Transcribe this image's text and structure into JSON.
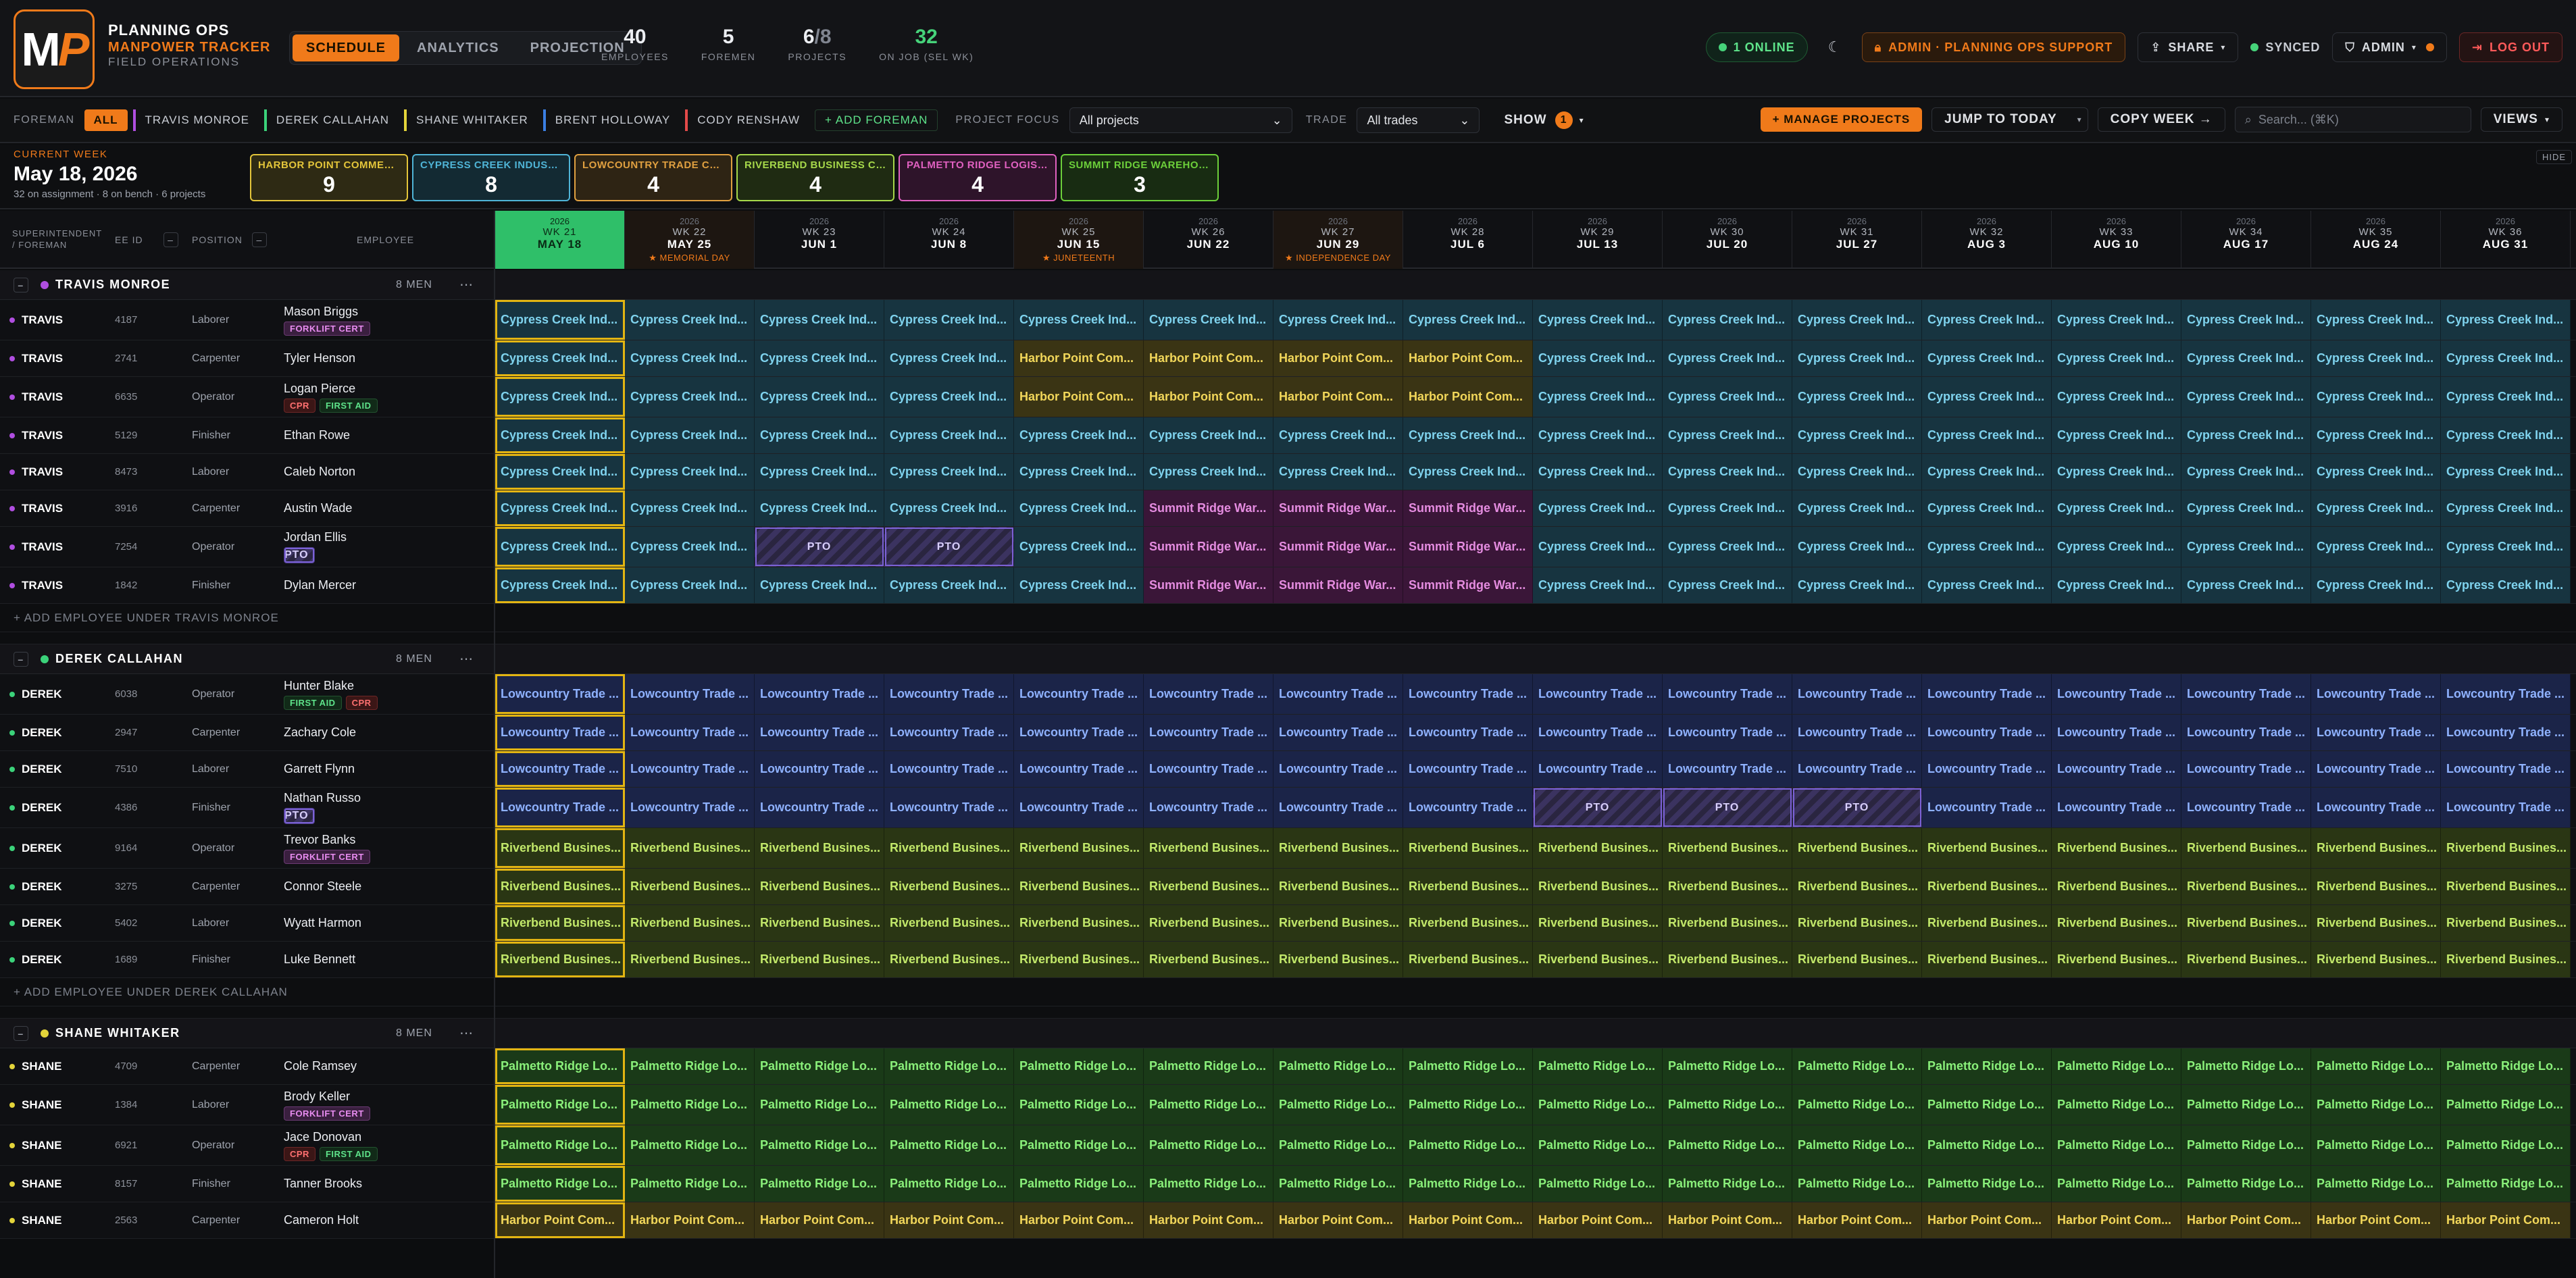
{
  "header": {
    "brand_line1": "PLANNING OPS",
    "brand_line2": "MANPOWER TRACKER",
    "brand_line3": "FIELD OPERATIONS",
    "logo_m": "M",
    "logo_p": "P",
    "tabs": [
      "SCHEDULE",
      "ANALYTICS",
      "PROJECTION"
    ],
    "stats": [
      {
        "value": "40",
        "label": "EMPLOYEES"
      },
      {
        "value": "5",
        "label": "FOREMEN"
      },
      {
        "value": "6",
        "value_sub": "/8",
        "label": "PROJECTS"
      },
      {
        "value": "32",
        "label": "ON JOB (SEL WK)"
      }
    ],
    "online": "1 ONLINE",
    "theme_icon": "moon-icon",
    "admin_support": "ADMIN · PLANNING OPS SUPPORT",
    "share": "SHARE",
    "synced": "SYNCED",
    "admin": "ADMIN",
    "logout": "LOG OUT"
  },
  "toolbar": {
    "foreman_label": "FOREMAN",
    "foremen": [
      {
        "label": "ALL",
        "color": "#f07a1a"
      },
      {
        "label": "TRAVIS MONROE",
        "color": "#b04ee0"
      },
      {
        "label": "DEREK CALLAHAN",
        "color": "#3bd27a"
      },
      {
        "label": "SHANE WHITAKER",
        "color": "#e3d43a"
      },
      {
        "label": "BRENT HOLLOWAY",
        "color": "#3b7fe3"
      },
      {
        "label": "CODY RENSHAW",
        "color": "#e34a4a"
      }
    ],
    "add_foreman": "+ ADD FOREMAN",
    "project_focus_label": "PROJECT FOCUS",
    "project_focus_value": "All projects",
    "trade_label": "TRADE",
    "trade_value": "All trades",
    "show_label": "SHOW",
    "show_count": "1",
    "manage_projects": "+ MANAGE PROJECTS",
    "jump_today": "JUMP TO TODAY",
    "copy_week": "COPY WEEK →",
    "search_placeholder": "Search... (⌘K)",
    "views": "VIEWS"
  },
  "summary": {
    "current_week_label": "CURRENT WEEK",
    "current_week_date": "May 18, 2026",
    "current_week_detail": "32 on assignment · 8 on bench · 6 projects",
    "hide": "HIDE",
    "projects": [
      {
        "name": "HARBOR POINT COMMER...",
        "count": "9",
        "color": "#e3c53a",
        "bg": "#2e2a14"
      },
      {
        "name": "CYPRESS CREEK INDUST...",
        "count": "8",
        "color": "#4fb4d6",
        "bg": "#132a33"
      },
      {
        "name": "LOWCOUNTRY TRADE CE...",
        "count": "4",
        "color": "#e0a040",
        "bg": "#2e2414"
      },
      {
        "name": "RIVERBEND BUSINESS CA...",
        "count": "4",
        "color": "#a6d84a",
        "bg": "#1f2b12"
      },
      {
        "name": "PALMETTO RIDGE LOGIST...",
        "count": "4",
        "color": "#e060c0",
        "bg": "#2e142a"
      },
      {
        "name": "SUMMIT RIDGE WAREHOU...",
        "count": "3",
        "color": "#6ccf3a",
        "bg": "#182c12"
      }
    ]
  },
  "columns": {
    "supt": "SUPERINTENDENT / FOREMAN",
    "eeid": "EE ID",
    "position": "POSITION",
    "employee": "EMPLOYEE"
  },
  "weeks": [
    {
      "year": "2026",
      "wk": "WK 21",
      "date": "MAY 18",
      "holiday": ""
    },
    {
      "year": "2026",
      "wk": "WK 22",
      "date": "MAY 25",
      "holiday": "★ MEMORIAL DAY"
    },
    {
      "year": "2026",
      "wk": "WK 23",
      "date": "JUN 1",
      "holiday": ""
    },
    {
      "year": "2026",
      "wk": "WK 24",
      "date": "JUN 8",
      "holiday": ""
    },
    {
      "year": "2026",
      "wk": "WK 25",
      "date": "JUN 15",
      "holiday": "★ JUNETEENTH"
    },
    {
      "year": "2026",
      "wk": "WK 26",
      "date": "JUN 22",
      "holiday": ""
    },
    {
      "year": "2026",
      "wk": "WK 27",
      "date": "JUN 29",
      "holiday": "★ INDEPENDENCE DAY"
    },
    {
      "year": "2026",
      "wk": "WK 28",
      "date": "JUL 6",
      "holiday": ""
    },
    {
      "year": "2026",
      "wk": "WK 29",
      "date": "JUL 13",
      "holiday": ""
    },
    {
      "year": "2026",
      "wk": "WK 30",
      "date": "JUL 20",
      "holiday": ""
    },
    {
      "year": "2026",
      "wk": "WK 31",
      "date": "JUL 27",
      "holiday": ""
    },
    {
      "year": "2026",
      "wk": "WK 32",
      "date": "AUG 3",
      "holiday": ""
    },
    {
      "year": "2026",
      "wk": "WK 33",
      "date": "AUG 10",
      "holiday": ""
    },
    {
      "year": "2026",
      "wk": "WK 34",
      "date": "AUG 17",
      "holiday": ""
    },
    {
      "year": "2026",
      "wk": "WK 35",
      "date": "AUG 24",
      "holiday": ""
    },
    {
      "year": "2026",
      "wk": "WK 36",
      "date": "AUG 31",
      "holiday": ""
    }
  ],
  "project_styles": {
    "C": {
      "label": "Cypress Creek Ind...",
      "fg": "#7fd3ee",
      "bg": "#173440"
    },
    "H": {
      "label": "Harbor Point Com...",
      "fg": "#f2d75a",
      "bg": "#3a3414"
    },
    "S": {
      "label": "Summit Ridge War...",
      "fg": "#e58ce0",
      "bg": "#3a1638"
    },
    "L": {
      "label": "Lowcountry Trade ...",
      "fg": "#8fb2ff",
      "bg": "#1b2448"
    },
    "R": {
      "label": "Riverbend Busines...",
      "fg": "#c2e86a",
      "bg": "#2a3614"
    },
    "P": {
      "label": "Palmetto Ridge Lo...",
      "fg": "#8af07a",
      "bg": "#1a3a18"
    },
    "T": {
      "label": "PTO",
      "fg": "#d8cffb",
      "bg": "#2a2540"
    }
  },
  "groups": [
    {
      "name": "TRAVIS MONROE",
      "color": "#b04ee0",
      "men": "8 MEN",
      "short": "TRAVIS",
      "add_label": "+ ADD EMPLOYEE UNDER TRAVIS MONROE",
      "employees": [
        {
          "id": "4187",
          "position": "Laborer",
          "name": "Mason Briggs",
          "certs": [
            "FORKLIFT CERT"
          ],
          "weeks": "CCCCCCCCCCCCCCCC"
        },
        {
          "id": "2741",
          "position": "Carpenter",
          "name": "Tyler Henson",
          "certs": [],
          "weeks": "CCCCHHHHCCCCCCCC"
        },
        {
          "id": "6635",
          "position": "Operator",
          "name": "Logan Pierce",
          "certs": [
            "CPR",
            "FIRST AID"
          ],
          "weeks": "CCCCHHHHCCCCCCCC"
        },
        {
          "id": "5129",
          "position": "Finisher",
          "name": "Ethan Rowe",
          "certs": [],
          "weeks": "CCCCCCCCCCCCCCCC"
        },
        {
          "id": "8473",
          "position": "Laborer",
          "name": "Caleb Norton",
          "certs": [],
          "weeks": "CCCCCCCCCCCCCCCC"
        },
        {
          "id": "3916",
          "position": "Carpenter",
          "name": "Austin Wade",
          "certs": [],
          "weeks": "CCCCCSSSCCCCCCCC"
        },
        {
          "id": "7254",
          "position": "Operator",
          "name": "Jordan Ellis",
          "certs": [
            "PTO"
          ],
          "weeks": "CCTTCSSSCCCCCCCC"
        },
        {
          "id": "1842",
          "position": "Finisher",
          "name": "Dylan Mercer",
          "certs": [],
          "weeks": "CCCCCSSSCCCCCCCC"
        }
      ]
    },
    {
      "name": "DEREK CALLAHAN",
      "color": "#3bd27a",
      "men": "8 MEN",
      "short": "DEREK",
      "add_label": "+ ADD EMPLOYEE UNDER DEREK CALLAHAN",
      "employees": [
        {
          "id": "6038",
          "position": "Operator",
          "name": "Hunter Blake",
          "certs": [
            "FIRST AID",
            "CPR"
          ],
          "weeks": "LLLLLLLLLLLLLLLL"
        },
        {
          "id": "2947",
          "position": "Carpenter",
          "name": "Zachary Cole",
          "certs": [],
          "weeks": "LLLLLLLLLLLLLLLL"
        },
        {
          "id": "7510",
          "position": "Laborer",
          "name": "Garrett Flynn",
          "certs": [],
          "weeks": "LLLLLLLLLLLLLLLL"
        },
        {
          "id": "4386",
          "position": "Finisher",
          "name": "Nathan Russo",
          "certs": [
            "PTO"
          ],
          "weeks": "LLLLLLLLTTTLLLLL"
        },
        {
          "id": "9164",
          "position": "Operator",
          "name": "Trevor Banks",
          "certs": [
            "FORKLIFT CERT"
          ],
          "weeks": "RRRRRRRRRRRRRRRR"
        },
        {
          "id": "3275",
          "position": "Carpenter",
          "name": "Connor Steele",
          "certs": [],
          "weeks": "RRRRRRRRRRRRRRRR"
        },
        {
          "id": "5402",
          "position": "Laborer",
          "name": "Wyatt Harmon",
          "certs": [],
          "weeks": "RRRRRRRRRRRRRRRR"
        },
        {
          "id": "1689",
          "position": "Finisher",
          "name": "Luke Bennett",
          "certs": [],
          "weeks": "RRRRRRRRRRRRRRRR"
        }
      ]
    },
    {
      "name": "SHANE WHITAKER",
      "color": "#e3d43a",
      "men": "8 MEN",
      "short": "SHANE",
      "add_label": "",
      "employees": [
        {
          "id": "4709",
          "position": "Carpenter",
          "name": "Cole Ramsey",
          "certs": [],
          "weeks": "PPPPPPPPPPPPPPPP"
        },
        {
          "id": "1384",
          "position": "Laborer",
          "name": "Brody Keller",
          "certs": [
            "FORKLIFT CERT"
          ],
          "weeks": "PPPPPPPPPPPPPPPP"
        },
        {
          "id": "6921",
          "position": "Operator",
          "name": "Jace Donovan",
          "certs": [
            "CPR",
            "FIRST AID"
          ],
          "weeks": "PPPPPPPPPPPPPPPP"
        },
        {
          "id": "8157",
          "position": "Finisher",
          "name": "Tanner Brooks",
          "certs": [],
          "weeks": "PPPPPPPPPPPPPPPP"
        },
        {
          "id": "2563",
          "position": "Carpenter",
          "name": "Cameron Holt",
          "certs": [],
          "weeks": "HHHHHHHHHHHHHHHH"
        }
      ]
    }
  ]
}
